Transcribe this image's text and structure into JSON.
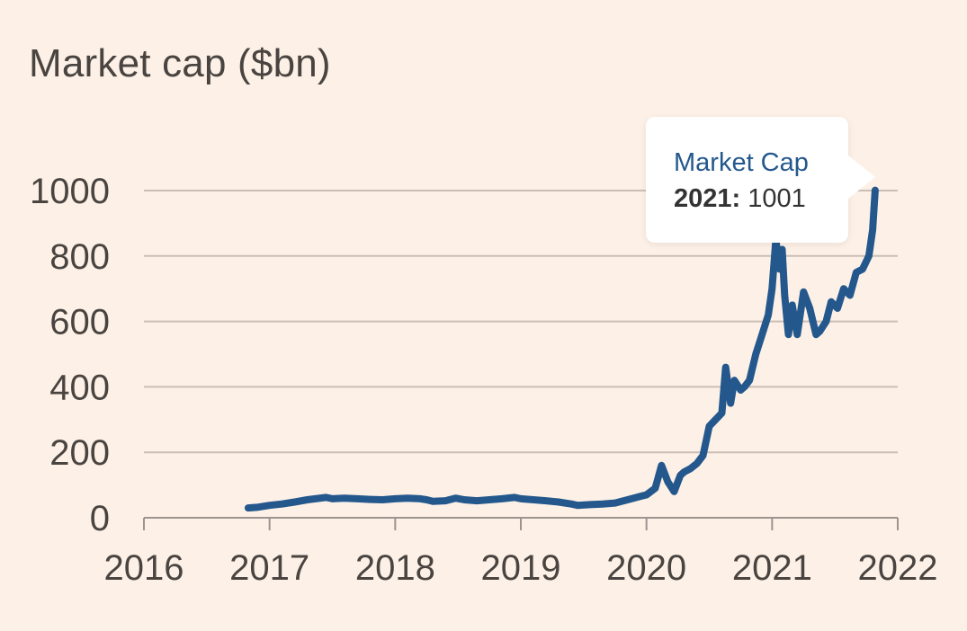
{
  "colors": {
    "background": "#fdf1e7",
    "line": "#24588d",
    "grid": "#cbbfb5",
    "axis": "#9d9490",
    "text": "#4a4441"
  },
  "chart_data": {
    "type": "line",
    "title": "Market cap ($bn)",
    "xlabel": "",
    "ylabel": "",
    "xlim": [
      2016,
      2022
    ],
    "ylim": [
      0,
      1000
    ],
    "x_ticks": [
      "2016",
      "2017",
      "2018",
      "2019",
      "2020",
      "2021",
      "2022"
    ],
    "y_ticks": [
      "0",
      "200",
      "400",
      "600",
      "800",
      "1000"
    ],
    "grid": true,
    "series": [
      {
        "name": "Market Cap",
        "x": [
          2016.83,
          2016.9,
          2017.0,
          2017.1,
          2017.2,
          2017.3,
          2017.45,
          2017.5,
          2017.6,
          2017.7,
          2017.8,
          2017.9,
          2018.0,
          2018.1,
          2018.2,
          2018.25,
          2018.3,
          2018.4,
          2018.48,
          2018.55,
          2018.65,
          2018.75,
          2018.85,
          2018.95,
          2019.0,
          2019.1,
          2019.2,
          2019.3,
          2019.4,
          2019.45,
          2019.55,
          2019.65,
          2019.75,
          2019.85,
          2019.95,
          2020.0,
          2020.07,
          2020.12,
          2020.17,
          2020.22,
          2020.27,
          2020.3,
          2020.35,
          2020.4,
          2020.45,
          2020.5,
          2020.55,
          2020.6,
          2020.63,
          2020.67,
          2020.7,
          2020.75,
          2020.78,
          2020.82,
          2020.87,
          2020.92,
          2020.97,
          2021.0,
          2021.03,
          2021.06,
          2021.08,
          2021.1,
          2021.13,
          2021.16,
          2021.2,
          2021.25,
          2021.3,
          2021.35,
          2021.38,
          2021.43,
          2021.47,
          2021.52,
          2021.57,
          2021.62,
          2021.67,
          2021.72,
          2021.77,
          2021.8,
          2021.82
        ],
        "values": [
          30,
          32,
          38,
          42,
          48,
          55,
          62,
          58,
          60,
          58,
          56,
          55,
          58,
          60,
          58,
          55,
          50,
          52,
          60,
          55,
          52,
          55,
          58,
          62,
          58,
          55,
          52,
          48,
          42,
          38,
          40,
          42,
          45,
          55,
          65,
          70,
          90,
          160,
          110,
          80,
          130,
          140,
          150,
          165,
          190,
          280,
          300,
          320,
          460,
          350,
          420,
          390,
          400,
          420,
          500,
          560,
          620,
          700,
          850,
          760,
          820,
          680,
          560,
          650,
          560,
          690,
          640,
          560,
          570,
          600,
          660,
          640,
          700,
          680,
          750,
          760,
          800,
          880,
          1001
        ]
      }
    ],
    "tooltip": {
      "series": "Market Cap",
      "year": "2021:",
      "value": "1001"
    }
  }
}
